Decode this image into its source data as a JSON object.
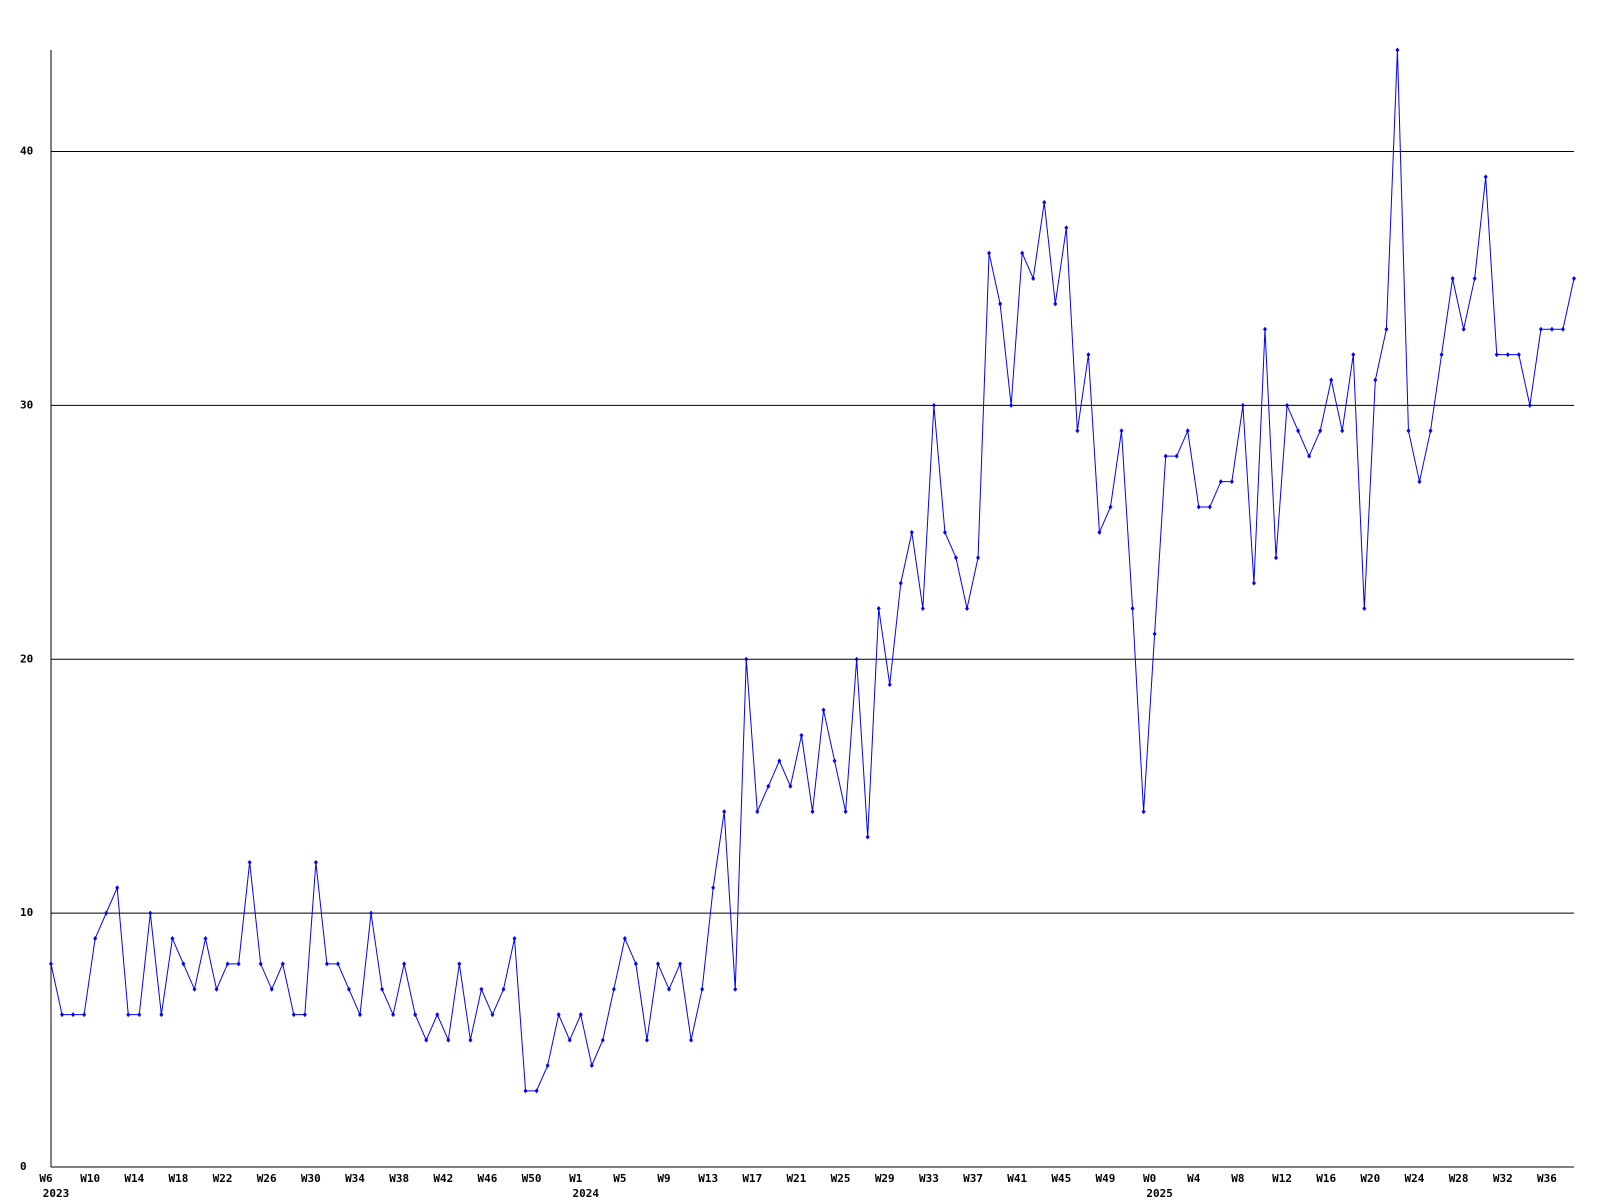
{
  "chart_data": {
    "type": "line",
    "categories": [
      "W6",
      null,
      null,
      null,
      "W10",
      null,
      null,
      null,
      "W14",
      null,
      null,
      null,
      "W18",
      null,
      null,
      null,
      "W22",
      null,
      null,
      null,
      "W26",
      null,
      null,
      null,
      "W30",
      null,
      null,
      null,
      "W34",
      null,
      null,
      null,
      "W38",
      null,
      null,
      null,
      "W42",
      null,
      null,
      null,
      "W46",
      null,
      null,
      null,
      "W50",
      null,
      null,
      null,
      "W1",
      null,
      null,
      null,
      "W5",
      null,
      null,
      null,
      "W9",
      null,
      null,
      null,
      "W13",
      null,
      null,
      null,
      "W17",
      null,
      null,
      null,
      "W21",
      null,
      null,
      null,
      "W25",
      null,
      null,
      null,
      "W29",
      null,
      null,
      null,
      "W33",
      null,
      null,
      null,
      "W37",
      null,
      null,
      null,
      "W41",
      null,
      null,
      null,
      "W45",
      null,
      null,
      null,
      "W49",
      null,
      null,
      null,
      "W0",
      null,
      null,
      null,
      "W4",
      null,
      null,
      null,
      "W8",
      null,
      null,
      null,
      "W12",
      null,
      null,
      null,
      "W16",
      null,
      null,
      null,
      "W20",
      null,
      null,
      null,
      "W24",
      null,
      null,
      null,
      "W28",
      null,
      null,
      null,
      "W32",
      null,
      null,
      null,
      "W36",
      null,
      null
    ],
    "year_labels": [
      "2023",
      null,
      null,
      null,
      null,
      null,
      null,
      null,
      null,
      null,
      null,
      null,
      null,
      null,
      null,
      null,
      null,
      null,
      null,
      null,
      null,
      null,
      null,
      null,
      null,
      null,
      null,
      null,
      null,
      null,
      null,
      null,
      null,
      null,
      null,
      null,
      null,
      null,
      null,
      null,
      null,
      null,
      null,
      null,
      null,
      null,
      null,
      null,
      "2024",
      null,
      null,
      null,
      null,
      null,
      null,
      null,
      null,
      null,
      null,
      null,
      null,
      null,
      null,
      null,
      null,
      null,
      null,
      null,
      null,
      null,
      null,
      null,
      null,
      null,
      null,
      null,
      null,
      null,
      null,
      null,
      null,
      null,
      null,
      null,
      null,
      null,
      null,
      null,
      null,
      null,
      null,
      null,
      null,
      null,
      null,
      null,
      null,
      null,
      null,
      null,
      "2025",
      null,
      null,
      null,
      null,
      null,
      null,
      null,
      null,
      null,
      null,
      null,
      null,
      null,
      null,
      null,
      null,
      null,
      null,
      null,
      null,
      null,
      null,
      null,
      null,
      null,
      null,
      null,
      null,
      null,
      null,
      null,
      null,
      null,
      null,
      null,
      null,
      null
    ],
    "values": [
      8,
      6,
      6,
      6,
      9,
      10,
      11,
      6,
      6,
      10,
      6,
      9,
      8,
      7,
      9,
      7,
      8,
      8,
      12,
      8,
      7,
      8,
      6,
      6,
      12,
      8,
      8,
      7,
      6,
      10,
      7,
      6,
      8,
      6,
      5,
      6,
      5,
      8,
      5,
      7,
      6,
      7,
      9,
      3,
      3,
      4,
      6,
      5,
      6,
      4,
      5,
      7,
      9,
      8,
      5,
      8,
      7,
      8,
      5,
      7,
      11,
      14,
      7,
      20,
      14,
      15,
      16,
      15,
      17,
      14,
      18,
      16,
      14,
      20,
      13,
      22,
      19,
      23,
      25,
      22,
      30,
      25,
      24,
      22,
      24,
      36,
      34,
      30,
      36,
      35,
      38,
      34,
      37,
      29,
      32,
      25,
      26,
      29,
      22,
      14,
      21,
      28,
      28,
      29,
      26,
      26,
      27,
      27,
      30,
      23,
      33,
      24,
      30,
      29,
      28,
      29,
      31,
      29,
      32,
      22,
      31,
      33,
      44,
      29,
      27,
      29,
      32,
      35,
      33,
      35,
      39,
      32,
      32,
      32,
      30,
      33,
      33,
      33,
      35
    ],
    "color": "#0000ff",
    "ylim": [
      0,
      44
    ],
    "yticks": [
      0,
      10,
      20,
      30,
      40
    ],
    "grid": true
  }
}
